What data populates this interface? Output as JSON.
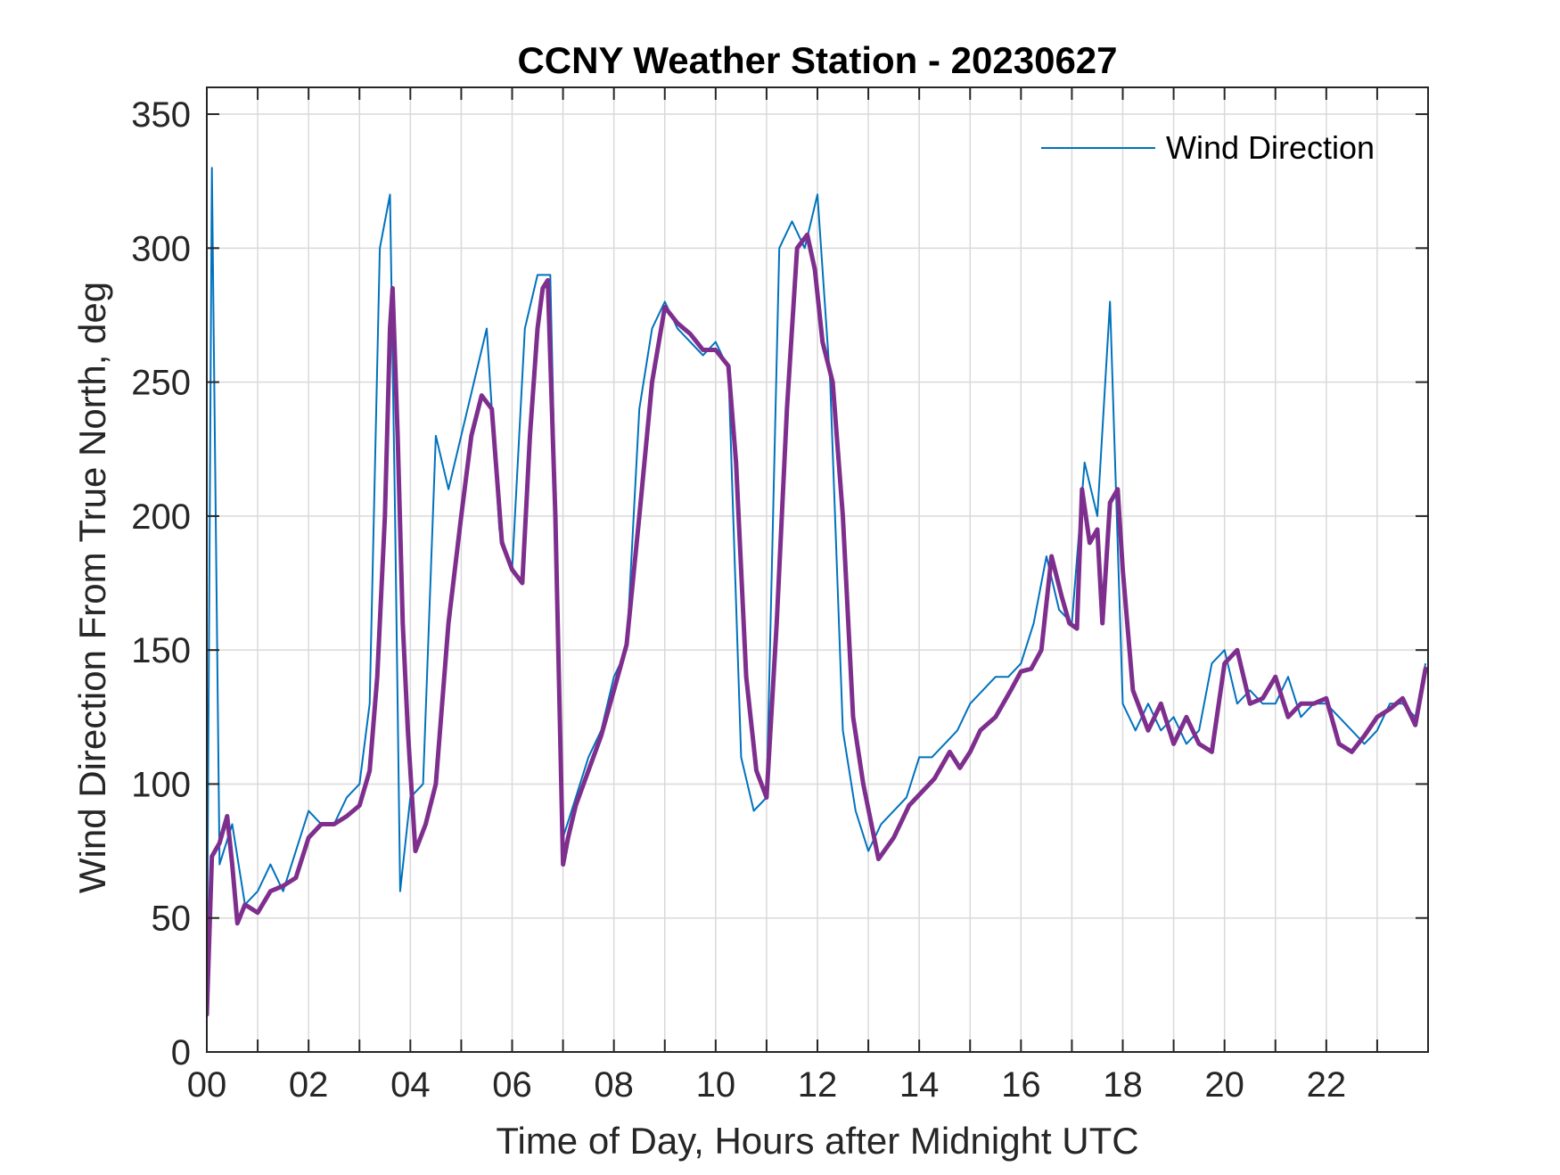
{
  "chart_data": {
    "type": "line",
    "title": "CCNY Weather Station - 20230627",
    "xlabel": "Time of Day, Hours after Midnight UTC",
    "ylabel": "Wind Direction From True North, deg",
    "xlim": [
      0,
      24
    ],
    "ylim": [
      0,
      360
    ],
    "xticks": [
      0,
      2,
      4,
      6,
      8,
      10,
      12,
      14,
      16,
      18,
      20,
      22
    ],
    "xtick_labels": [
      "00",
      "02",
      "04",
      "06",
      "08",
      "10",
      "12",
      "14",
      "16",
      "18",
      "20",
      "22"
    ],
    "yticks": [
      0,
      50,
      100,
      150,
      200,
      250,
      300,
      350
    ],
    "ytick_labels": [
      "0",
      "50",
      "100",
      "150",
      "200",
      "250",
      "300",
      "350"
    ],
    "grid": true,
    "legend": {
      "placement": "top-right",
      "entries": [
        "Wind Direction"
      ]
    },
    "colors": {
      "raw": "#0072BD",
      "smoothed": "#7E2F8E"
    },
    "series": [
      {
        "name": "Wind Direction",
        "x": [
          0.0,
          0.1,
          0.25,
          0.5,
          0.75,
          1.0,
          1.25,
          1.5,
          1.75,
          2.0,
          2.25,
          2.5,
          2.75,
          3.0,
          3.2,
          3.4,
          3.6,
          3.7,
          3.8,
          4.0,
          4.25,
          4.5,
          4.75,
          5.0,
          5.25,
          5.5,
          5.75,
          6.0,
          6.25,
          6.5,
          6.75,
          7.0,
          7.25,
          7.5,
          7.75,
          8.0,
          8.25,
          8.5,
          8.75,
          9.0,
          9.25,
          9.5,
          9.75,
          10.0,
          10.25,
          10.5,
          10.75,
          11.0,
          11.25,
          11.5,
          11.75,
          12.0,
          12.25,
          12.5,
          12.75,
          13.0,
          13.25,
          13.5,
          13.75,
          14.0,
          14.25,
          14.5,
          14.75,
          15.0,
          15.25,
          15.5,
          15.75,
          16.0,
          16.25,
          16.5,
          16.75,
          17.0,
          17.25,
          17.5,
          17.75,
          18.0,
          18.25,
          18.5,
          18.75,
          19.0,
          19.25,
          19.5,
          19.75,
          20.0,
          20.25,
          20.5,
          20.75,
          21.0,
          21.25,
          21.5,
          21.75,
          22.0,
          22.25,
          22.5,
          22.75,
          23.0,
          23.25,
          23.5,
          23.75,
          23.95
        ],
        "y": [
          20,
          330,
          70,
          85,
          55,
          60,
          70,
          60,
          75,
          90,
          85,
          85,
          95,
          100,
          130,
          300,
          320,
          200,
          60,
          95,
          100,
          230,
          210,
          230,
          250,
          270,
          195,
          180,
          270,
          290,
          290,
          80,
          95,
          110,
          120,
          140,
          150,
          240,
          270,
          280,
          270,
          265,
          260,
          265,
          255,
          110,
          90,
          95,
          300,
          310,
          300,
          320,
          250,
          120,
          90,
          75,
          85,
          90,
          95,
          110,
          110,
          115,
          120,
          130,
          135,
          140,
          140,
          145,
          160,
          185,
          165,
          160,
          220,
          200,
          280,
          130,
          120,
          130,
          120,
          125,
          115,
          120,
          145,
          150,
          130,
          135,
          130,
          130,
          140,
          125,
          130,
          130,
          125,
          120,
          115,
          120,
          130,
          130,
          125,
          145
        ]
      },
      {
        "name": "",
        "x": [
          0.0,
          0.1,
          0.25,
          0.4,
          0.5,
          0.6,
          0.75,
          1.0,
          1.25,
          1.5,
          1.75,
          2.0,
          2.25,
          2.5,
          2.75,
          3.0,
          3.2,
          3.35,
          3.5,
          3.6,
          3.65,
          3.75,
          3.85,
          3.95,
          4.1,
          4.3,
          4.5,
          4.75,
          5.0,
          5.2,
          5.4,
          5.6,
          5.8,
          6.0,
          6.2,
          6.35,
          6.5,
          6.6,
          6.7,
          6.85,
          7.0,
          7.1,
          7.25,
          7.5,
          7.75,
          8.0,
          8.25,
          8.5,
          8.75,
          9.0,
          9.25,
          9.5,
          9.75,
          10.0,
          10.25,
          10.4,
          10.6,
          10.8,
          11.0,
          11.2,
          11.4,
          11.6,
          11.8,
          11.95,
          12.1,
          12.3,
          12.5,
          12.7,
          12.9,
          13.2,
          13.5,
          13.8,
          14.0,
          14.3,
          14.6,
          14.8,
          15.0,
          15.2,
          15.5,
          15.8,
          16.0,
          16.2,
          16.4,
          16.6,
          16.8,
          16.95,
          17.1,
          17.2,
          17.35,
          17.5,
          17.6,
          17.75,
          17.9,
          18.0,
          18.2,
          18.5,
          18.75,
          19.0,
          19.25,
          19.5,
          19.75,
          20.0,
          20.25,
          20.5,
          20.75,
          21.0,
          21.25,
          21.5,
          21.75,
          22.0,
          22.25,
          22.5,
          22.75,
          23.0,
          23.25,
          23.5,
          23.75,
          23.95
        ],
        "y": [
          14,
          73,
          78,
          88,
          70,
          48,
          55,
          52,
          60,
          62,
          65,
          80,
          85,
          85,
          88,
          92,
          105,
          140,
          200,
          270,
          285,
          230,
          160,
          120,
          75,
          85,
          100,
          160,
          200,
          230,
          245,
          240,
          190,
          180,
          175,
          230,
          270,
          285,
          288,
          200,
          70,
          80,
          92,
          105,
          118,
          135,
          152,
          200,
          250,
          278,
          272,
          268,
          262,
          262,
          256,
          220,
          140,
          105,
          95,
          160,
          240,
          300,
          305,
          292,
          265,
          250,
          200,
          125,
          100,
          72,
          80,
          92,
          96,
          102,
          112,
          106,
          112,
          120,
          125,
          135,
          142,
          143,
          150,
          185,
          170,
          160,
          158,
          210,
          190,
          195,
          160,
          205,
          210,
          180,
          135,
          120,
          130,
          115,
          125,
          115,
          112,
          145,
          150,
          130,
          132,
          140,
          125,
          130,
          130,
          132,
          115,
          112,
          118,
          125,
          128,
          132,
          122,
          143
        ]
      }
    ]
  }
}
